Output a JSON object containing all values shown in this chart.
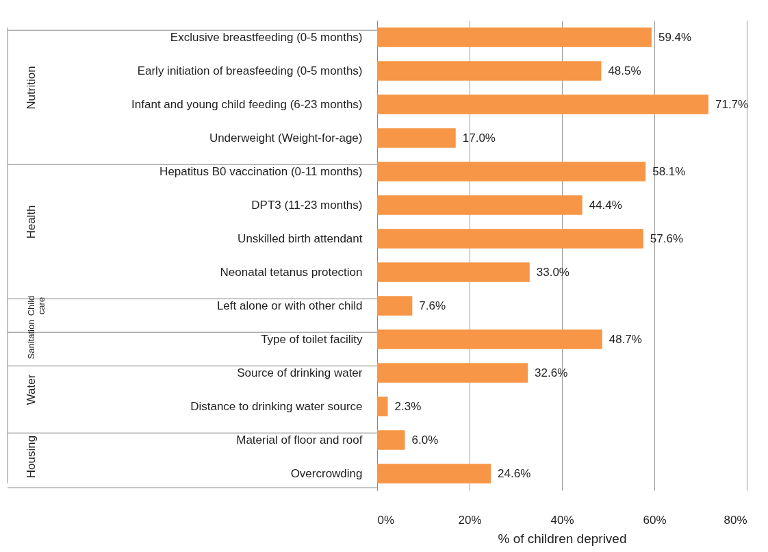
{
  "chart_data": {
    "type": "bar",
    "orientation": "horizontal",
    "xlabel": "% of children deprived",
    "categories": [
      "Exclusive breastfeeding (0-5 months)",
      "Early initiation of breasfeeding (0-5 months)",
      "Infant and young child feeding (6-23 months)",
      "Underweight (Weight-for-age)",
      "Hepatitus B0 vaccination (0-11 months)",
      "DPT3 (11-23 months)",
      "Unskilled birth attendant",
      "Neonatal tetanus protection",
      "Left alone or with other child",
      "Type of toilet facility",
      "Source of drinking water ",
      "Distance to drinking water source",
      "Material of floor and roof",
      "Overcrowding"
    ],
    "values": [
      59.4,
      48.5,
      71.7,
      17.0,
      58.1,
      44.4,
      57.6,
      33.0,
      7.6,
      48.7,
      32.6,
      2.3,
      6.0,
      24.6
    ],
    "value_labels": [
      "59.4%",
      "48.5%",
      "71.7%",
      "17.0%",
      "58.1%",
      "44.4%",
      "57.6%",
      "33.0%",
      "7.6%",
      "48.7%",
      "32.6%",
      "2.3%",
      "6.0%",
      "24.6%"
    ],
    "color": "#f79646",
    "xlim": [
      0,
      80
    ],
    "xticks": [
      {
        "value": 0,
        "label": "0%"
      },
      {
        "value": 20,
        "label": "20%"
      },
      {
        "value": 40,
        "label": "40%"
      },
      {
        "value": 60,
        "label": "60%"
      },
      {
        "value": 80,
        "label": "80%"
      }
    ],
    "grid": "x",
    "annotations": [
      "Nutrition",
      "Health",
      "Child care",
      "Sanitation",
      "Water",
      "Housing"
    ]
  }
}
